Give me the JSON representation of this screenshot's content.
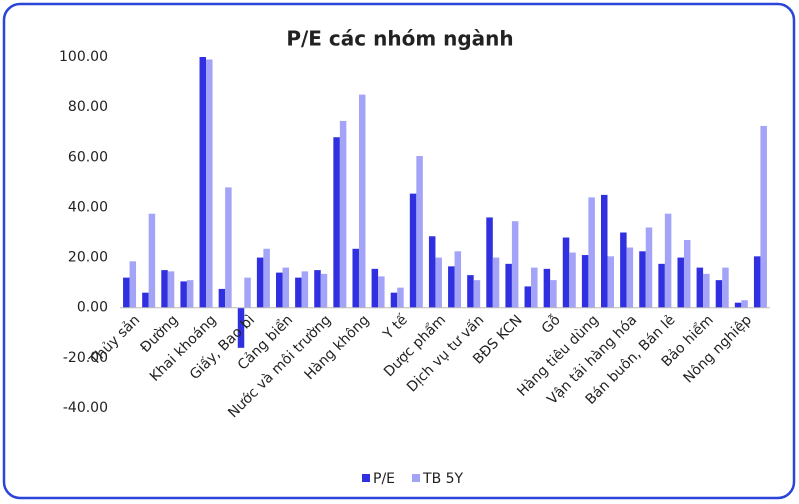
{
  "chart_data": {
    "type": "bar",
    "title": "P/E các nhóm ngành",
    "categories": [
      "Thủy sản",
      null,
      "Đường",
      null,
      "Khai khoáng",
      null,
      "Giấy, Bao bì",
      null,
      "Cảng biển",
      null,
      "Nước và môi trường",
      null,
      "Hàng không",
      null,
      "Y tế",
      null,
      "Dược phẩm",
      null,
      "Dịch vụ tư vấn",
      null,
      "BĐS KCN",
      null,
      "Gỗ",
      null,
      "Hàng tiêu dùng",
      null,
      "Vận tải hàng hóa",
      null,
      "Bán buôn, Bán lẻ",
      null,
      "Bảo hiểm",
      null,
      "Nông nghiệp",
      null
    ],
    "series": [
      {
        "name": "P/E",
        "color": "#3030e0",
        "values": [
          12,
          6,
          15,
          10.5,
          100,
          7.5,
          -16,
          20,
          14,
          12,
          15,
          68,
          23.5,
          15.5,
          6,
          45.5,
          28.5,
          16.5,
          13,
          36,
          17.5,
          8.5,
          15.5,
          28,
          21,
          45,
          30,
          22.5,
          17.5,
          20,
          16,
          11,
          2,
          20.5
        ]
      },
      {
        "name": "TB 5Y",
        "color": "#a3a3f7",
        "values": [
          18.5,
          37.5,
          14.5,
          11,
          99,
          48,
          12,
          23.5,
          16,
          14.5,
          13.5,
          74.5,
          85,
          12.5,
          8,
          60.5,
          20,
          22.5,
          11,
          20,
          34.5,
          16,
          11,
          22,
          44,
          20.5,
          24,
          32,
          37.5,
          27,
          13.5,
          16,
          3,
          72.5
        ]
      }
    ],
    "ylim": [
      -40,
      100
    ],
    "yticks": [
      {
        "value": -40,
        "label": "-40.00"
      },
      {
        "value": -20,
        "label": "-20.00"
      },
      {
        "value": 0,
        "label": "0.00"
      },
      {
        "value": 20,
        "label": "20.00"
      },
      {
        "value": 40,
        "label": "40.00"
      },
      {
        "value": 60,
        "label": "60.00"
      },
      {
        "value": 80,
        "label": "80.00"
      },
      {
        "value": 100,
        "label": "100.00"
      }
    ],
    "grid": false,
    "legend": "bottom"
  }
}
